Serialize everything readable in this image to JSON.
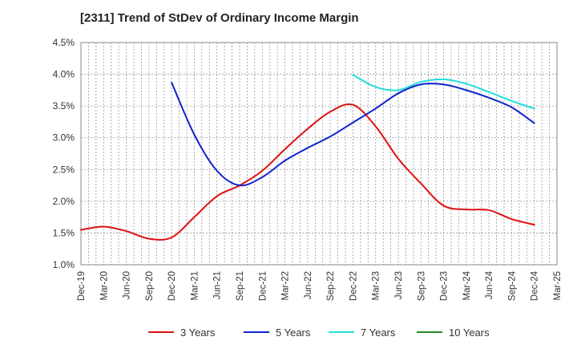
{
  "chart_data": {
    "type": "line",
    "title": "[2311]  Trend of StDev of Ordinary Income Margin",
    "xlabel": "",
    "ylabel": "",
    "x_ticks": [
      "Dec-19",
      "Mar-20",
      "Jun-20",
      "Sep-20",
      "Dec-20",
      "Mar-21",
      "Jun-21",
      "Sep-21",
      "Dec-21",
      "Mar-22",
      "Jun-22",
      "Sep-22",
      "Dec-22",
      "Mar-23",
      "Jun-23",
      "Sep-23",
      "Dec-23",
      "Mar-24",
      "Jun-24",
      "Sep-24",
      "Dec-24",
      "Mar-25"
    ],
    "y_ticks": [
      "1.0%",
      "1.5%",
      "2.0%",
      "2.5%",
      "3.0%",
      "3.5%",
      "4.0%",
      "4.5%"
    ],
    "ylim": [
      1.0,
      4.5
    ],
    "grid": true,
    "legend_position": "bottom",
    "series": [
      {
        "name": "3 Years",
        "color": "#dd1111",
        "points": [
          [
            "Dec-19",
            1.55
          ],
          [
            "Mar-20",
            1.6
          ],
          [
            "Jun-20",
            1.53
          ],
          [
            "Sep-20",
            1.41
          ],
          [
            "Dec-20",
            1.43
          ],
          [
            "Mar-21",
            1.75
          ],
          [
            "Jun-21",
            2.08
          ],
          [
            "Sep-21",
            2.25
          ],
          [
            "Dec-21",
            2.48
          ],
          [
            "Mar-22",
            2.82
          ],
          [
            "Jun-22",
            3.14
          ],
          [
            "Sep-22",
            3.41
          ],
          [
            "Dec-22",
            3.52
          ],
          [
            "Mar-23",
            3.18
          ],
          [
            "Jun-23",
            2.67
          ],
          [
            "Sep-23",
            2.28
          ],
          [
            "Dec-23",
            1.93
          ],
          [
            "Mar-24",
            1.87
          ],
          [
            "Jun-24",
            1.86
          ],
          [
            "Sep-24",
            1.72
          ],
          [
            "Dec-24",
            1.63
          ]
        ]
      },
      {
        "name": "5 Years",
        "color": "#1122cc",
        "points": [
          [
            "Dec-20",
            3.87
          ],
          [
            "Mar-21",
            3.05
          ],
          [
            "Jun-21",
            2.48
          ],
          [
            "Sep-21",
            2.25
          ],
          [
            "Dec-21",
            2.38
          ],
          [
            "Mar-22",
            2.64
          ],
          [
            "Jun-22",
            2.84
          ],
          [
            "Sep-22",
            3.02
          ],
          [
            "Dec-22",
            3.24
          ],
          [
            "Mar-23",
            3.46
          ],
          [
            "Jun-23",
            3.7
          ],
          [
            "Sep-23",
            3.84
          ],
          [
            "Dec-23",
            3.84
          ],
          [
            "Mar-24",
            3.75
          ],
          [
            "Jun-24",
            3.63
          ],
          [
            "Sep-24",
            3.48
          ],
          [
            "Dec-24",
            3.23
          ]
        ]
      },
      {
        "name": "7 Years",
        "color": "#22dddd",
        "points": [
          [
            "Dec-22",
            3.99
          ],
          [
            "Mar-23",
            3.8
          ],
          [
            "Jun-23",
            3.75
          ],
          [
            "Sep-23",
            3.88
          ],
          [
            "Dec-23",
            3.92
          ],
          [
            "Mar-24",
            3.85
          ],
          [
            "Jun-24",
            3.72
          ],
          [
            "Sep-24",
            3.58
          ],
          [
            "Dec-24",
            3.46
          ]
        ]
      },
      {
        "name": "10 Years",
        "color": "#228822",
        "points": []
      }
    ]
  }
}
